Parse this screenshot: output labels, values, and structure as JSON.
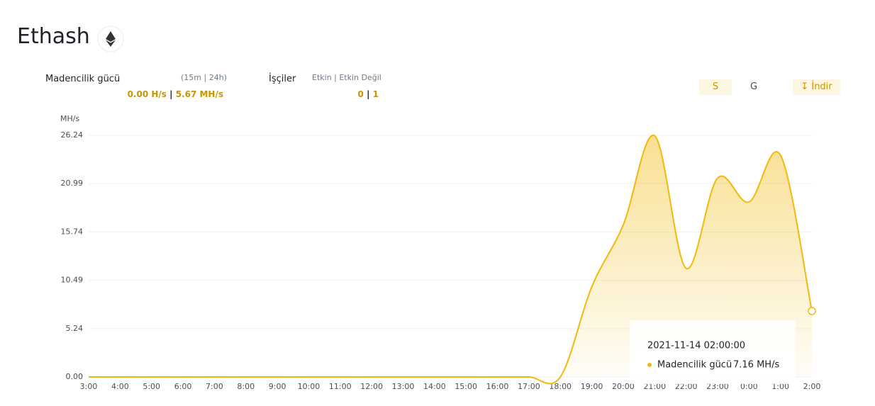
{
  "header": {
    "title": "Ethash",
    "hashrate_label": "Madencilik gücü",
    "hashrate_periods": "(15m | 24h)",
    "hashrate_15m": "0.00 H/s",
    "separator": "|",
    "hashrate_24h": "5.67 MH/s",
    "workers_label": "İşçiler",
    "workers_states": "Etkin | Etkin Değil",
    "workers_active": "0",
    "workers_inactive": "1"
  },
  "controls": {
    "short": "S",
    "long": "G",
    "download": "İndir"
  },
  "chart_data": {
    "type": "area",
    "y_unit": "MH/s",
    "categories": [
      "3:00",
      "4:00",
      "5:00",
      "6:00",
      "7:00",
      "8:00",
      "9:00",
      "10:00",
      "11:00",
      "12:00",
      "13:00",
      "14:00",
      "15:00",
      "16:00",
      "17:00",
      "18:00",
      "19:00",
      "20:00",
      "21:00",
      "22:00",
      "23:00",
      "0:00",
      "1:00",
      "2:00"
    ],
    "series": [
      {
        "name": "Madencilik gücü",
        "color": "#f0b90b",
        "values": [
          0,
          0,
          0,
          0,
          0,
          0,
          0,
          0,
          0,
          0,
          0,
          0,
          0,
          0,
          0,
          0,
          9.8,
          16.5,
          26.2,
          11.8,
          21.6,
          19.0,
          24.1,
          7.16
        ]
      }
    ],
    "ylim": [
      0,
      26.24
    ],
    "yticks": [
      {
        "value": 0,
        "label": "0.00"
      },
      5.24,
      10.49,
      15.74,
      20.99,
      26.24
    ],
    "grid": true,
    "tooltip": {
      "time": "2021-11-14 02:00:00",
      "value": "7.16 MH/s"
    }
  }
}
